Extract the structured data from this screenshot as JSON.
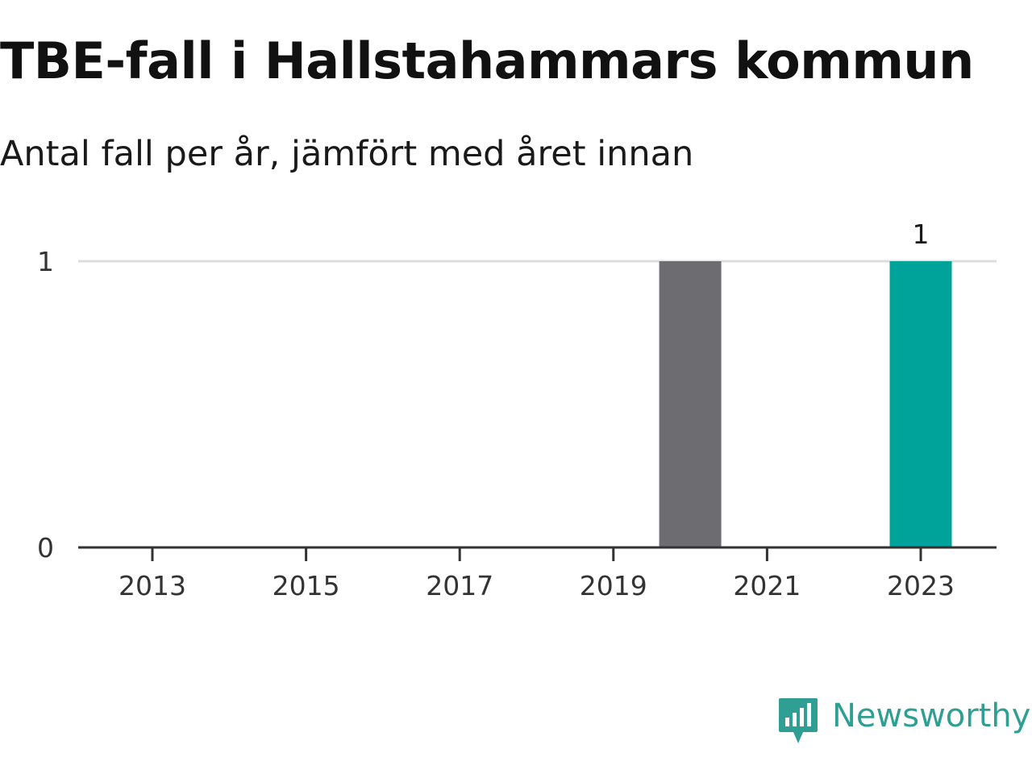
{
  "title": "TBE-fall i Hallstahammars kommun",
  "subtitle": "Antal fall per år, jämfört med året innan",
  "brand": {
    "name": "Newsworthy",
    "color": "#2f9f94",
    "icon": "newsworthy-logo-icon"
  },
  "colors": {
    "current": "#00a39a",
    "previous": "#6d6c71",
    "grid": "#dddddd",
    "axis": "#333333"
  },
  "chart_data": {
    "type": "bar",
    "title": "TBE-fall i Hallstahammars kommun",
    "subtitle": "Antal fall per år, jämfört med året innan",
    "xlabel": "",
    "ylabel": "",
    "categories": [
      "2013",
      "2014",
      "2015",
      "2016",
      "2017",
      "2018",
      "2019",
      "2020",
      "2021",
      "2022",
      "2023"
    ],
    "series": [
      {
        "values": [
          0,
          0,
          0,
          0,
          0,
          0,
          0,
          1,
          0,
          0,
          1
        ],
        "highlight_index": 10
      }
    ],
    "x_tick_labels": [
      "2013",
      "2015",
      "2017",
      "2019",
      "2021",
      "2023"
    ],
    "y_tick_labels": [
      "0",
      "1"
    ],
    "ylim": [
      0,
      1
    ],
    "grid": true,
    "data_labels": [
      {
        "category": "2023",
        "text": "1"
      }
    ]
  }
}
